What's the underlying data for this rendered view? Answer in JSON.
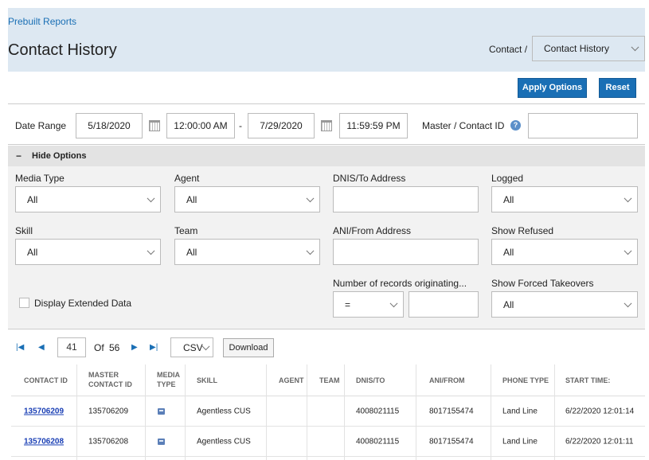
{
  "header": {
    "breadcrumb": "Prebuilt Reports",
    "title": "Contact History",
    "contact_label": "Contact /",
    "report_select": "Contact History"
  },
  "actions": {
    "apply": "Apply Options",
    "reset": "Reset"
  },
  "date_row": {
    "label": "Date Range",
    "start_date": "5/18/2020",
    "start_time": "12:00:00 AM",
    "separator": "-",
    "end_date": "7/29/2020",
    "end_time": "11:59:59 PM",
    "master_label": "Master / Contact ID",
    "master_value": ""
  },
  "options": {
    "toggle_label": "Hide Options",
    "media_type": {
      "label": "Media Type",
      "value": "All"
    },
    "agent": {
      "label": "Agent",
      "value": "All"
    },
    "dnis": {
      "label": "DNIS/To Address",
      "value": ""
    },
    "logged": {
      "label": "Logged",
      "value": "All"
    },
    "skill": {
      "label": "Skill",
      "value": "All"
    },
    "team": {
      "label": "Team",
      "value": "All"
    },
    "ani": {
      "label": "ANI/From Address",
      "value": ""
    },
    "show_refused": {
      "label": "Show Refused",
      "value": "All"
    },
    "records_label": "Number of records originating...",
    "records_operator": "=",
    "records_value": "",
    "show_forced": {
      "label": "Show Forced Takeovers",
      "value": "All"
    },
    "extended_label": "Display Extended Data"
  },
  "pager": {
    "page": "41",
    "of_label": "Of",
    "total": "56",
    "format": "CSV",
    "download": "Download"
  },
  "table": {
    "headers": {
      "contact_id": "CONTACT ID",
      "master_1": "MASTER",
      "master_2": "CONTACT ID",
      "media_1": "MEDIA",
      "media_2": "TYPE",
      "skill": "SKILL",
      "agent": "AGENT",
      "team": "TEAM",
      "dnis": "DNIS/TO",
      "ani": "ANI/FROM",
      "phone": "PHONE TYPE",
      "start": "START TIME:"
    },
    "rows": [
      {
        "contact_id": "135706209",
        "master_id": "135706209",
        "media_icon": "email-icon",
        "skill": "Agentless CUS",
        "agent": "",
        "team": "",
        "dnis": "4008021115",
        "ani": "8017155474",
        "phone_type": "Land Line",
        "start_time": "6/22/2020 12:01:14"
      },
      {
        "contact_id": "135706208",
        "master_id": "135706208",
        "media_icon": "email-icon",
        "skill": "Agentless CUS",
        "agent": "",
        "team": "",
        "dnis": "4008021115",
        "ani": "8017155474",
        "phone_type": "Land Line",
        "start_time": "6/22/2020 12:01:11"
      }
    ]
  }
}
